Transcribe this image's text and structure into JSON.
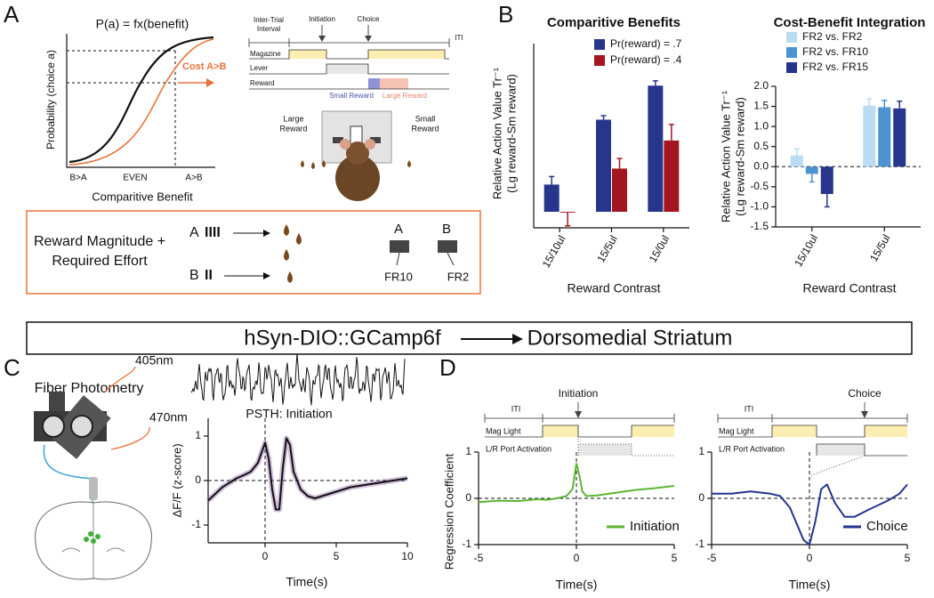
{
  "letters": [
    "A",
    "B",
    "C",
    "D"
  ],
  "panel_a": {
    "formula": "P(a) = fx(benefit)",
    "y_label": "Probability (choice a)",
    "x_label": "Comparitive Benefit",
    "x_categories": [
      "B>A",
      "EVEN",
      "A>B"
    ],
    "annotation": "Cost A>B",
    "timeline": {
      "start": [
        "Inter-Trial",
        "Interval"
      ],
      "events": [
        "Initiation",
        "Choice"
      ],
      "end": "ITI",
      "rows": [
        "Magazine",
        "Lever",
        "Reward"
      ],
      "reward_labels": [
        "Small Reward",
        "Large Reward"
      ]
    },
    "chamber": {
      "left": [
        "Large",
        "Reward"
      ],
      "right": [
        "Small",
        "Reward"
      ]
    },
    "box": {
      "title": [
        "Reward Magnitude +",
        "Required Effort"
      ],
      "options": [
        {
          "name": "A",
          "effort": "IIII"
        },
        {
          "name": "B",
          "effort": "II"
        }
      ],
      "levers": [
        {
          "name": "A",
          "ratio": "FR10"
        },
        {
          "name": "B",
          "ratio": "FR2"
        }
      ]
    }
  },
  "banner": {
    "from": "hSyn-DIO::GCamp6f",
    "to": "Dorsomedial Striatum"
  },
  "panel_c": {
    "title": "Fiber Photometry",
    "wavelengths": [
      "405nm",
      "470nm"
    ]
  },
  "panel_d": {
    "timelines": [
      {
        "start": "ITI",
        "event": "Initiation",
        "rows": [
          "Mag Light",
          "L/R Port Activation"
        ]
      },
      {
        "start": "ITI",
        "event": "Choice",
        "rows": [
          "Mag Light",
          "L/R Port Activation"
        ]
      }
    ]
  },
  "chart_data": [
    {
      "type": "bar",
      "title": "Comparitive Benefits",
      "y_label": [
        "Relative Action Value Tr⁻¹",
        "(Lg reward-Sm reward)"
      ],
      "x_label": "Reward Contrast",
      "categories": [
        "15/10ul",
        "15/5ul",
        "15/0ul"
      ],
      "series": [
        {
          "name": "Pr(reward) = .7",
          "color": "#27358c",
          "values": [
            0.68,
            2.3,
            3.15
          ],
          "errors": [
            0.2,
            0.1,
            0.12
          ]
        },
        {
          "name": "Pr(reward) = .4",
          "color": "#a3161f",
          "values": [
            -0.02,
            1.08,
            1.78
          ],
          "errors": [
            0.33,
            0.25,
            0.4
          ]
        }
      ],
      "ylim": [
        -0.4,
        4.2
      ]
    },
    {
      "type": "bar",
      "title": "Cost-Benefit Integration",
      "y_label": [
        "Relative Action Value Tr⁻¹",
        "(Lg reward-Sm reward)"
      ],
      "x_label": "Reward Contrast",
      "categories": [
        "15/10ul",
        "15/5ul"
      ],
      "series": [
        {
          "name": "FR2 vs. FR2",
          "color": "#b9dcf4",
          "values": [
            0.28,
            1.52
          ],
          "errors": [
            0.16,
            0.17
          ]
        },
        {
          "name": "FR2 vs. FR10",
          "color": "#4b93d1",
          "values": [
            -0.18,
            1.48
          ],
          "errors": [
            0.2,
            0.17
          ]
        },
        {
          "name": "FR2 vs. FR15",
          "color": "#27358c",
          "values": [
            -0.68,
            1.45
          ],
          "errors": [
            0.32,
            0.18
          ]
        }
      ],
      "ylim": [
        -1.5,
        2.0
      ],
      "yticks": [
        {
          "value": -1.5,
          "label": "-1.5"
        },
        {
          "value": -1,
          "label": "-1.0"
        },
        {
          "value": -0.5,
          "label": "-0.5"
        },
        {
          "value": 0,
          "label": "0.0"
        },
        {
          "value": 0.5,
          "label": "0.5"
        },
        {
          "value": 1,
          "label": "1.0"
        },
        {
          "value": 1.5,
          "label": "1.5"
        },
        {
          "value": 2,
          "label": "2.0"
        }
      ],
      "zero_line": true
    },
    {
      "type": "line",
      "title": "PSTH: Initiation",
      "y_label": [
        "ΔF/F (z-score)"
      ],
      "x_label": "Time(s)",
      "x": [
        -4,
        -3.5,
        -3,
        -2.5,
        -2,
        -1.5,
        -1,
        -0.5,
        0,
        0.25,
        0.5,
        0.75,
        1,
        1.25,
        1.5,
        1.75,
        2,
        2.5,
        3,
        3.5,
        4,
        5,
        6,
        7,
        8,
        9,
        10
      ],
      "series": [
        {
          "color": "#111111",
          "values": [
            -0.45,
            -0.3,
            -0.15,
            -0.05,
            0.05,
            0.12,
            0.2,
            0.4,
            0.85,
            0.5,
            -0.2,
            -0.65,
            -0.65,
            0.3,
            0.95,
            0.8,
            0.2,
            -0.2,
            -0.35,
            -0.4,
            -0.35,
            -0.25,
            -0.15,
            -0.1,
            -0.05,
            0.0,
            0.05
          ]
        }
      ],
      "xlim": [
        -4,
        10
      ],
      "xticks": [
        0,
        5,
        10
      ],
      "ylim": [
        -1.4,
        1.4
      ],
      "yticks": [
        -1,
        0,
        1
      ],
      "zero_line": true,
      "event_x": 0
    },
    {
      "type": "line",
      "y_label": [
        "Regression Coefficient"
      ],
      "x_label": "Time(s)",
      "x": [
        -5,
        -4,
        -3,
        -2,
        -1.5,
        -1,
        -0.5,
        -0.2,
        0,
        0.15,
        0.3,
        0.5,
        1,
        2,
        3,
        4,
        5
      ],
      "series": [
        {
          "name": "Initiation",
          "color": "#5cb531",
          "values": [
            -0.08,
            -0.05,
            -0.06,
            -0.02,
            -0.03,
            0.0,
            0.05,
            0.2,
            0.75,
            0.5,
            0.15,
            0.05,
            0.06,
            0.12,
            0.18,
            0.22,
            0.27
          ]
        }
      ],
      "xlim": [
        -5,
        5
      ],
      "xticks": [
        -5,
        0,
        5
      ],
      "ylim": [
        -1,
        1
      ],
      "yticks": [
        -1,
        0,
        1
      ],
      "zero_line": true,
      "event_x": 0
    },
    {
      "type": "line",
      "x_label": "Time(s)",
      "x": [
        -5,
        -4,
        -3,
        -2,
        -1.5,
        -1,
        -0.6,
        -0.3,
        0,
        0.3,
        0.6,
        0.9,
        1.3,
        1.8,
        2.3,
        3,
        4,
        4.6,
        5
      ],
      "series": [
        {
          "name": "Choice",
          "color": "#23358f",
          "values": [
            0.1,
            0.1,
            0.15,
            0.1,
            0.05,
            -0.2,
            -0.6,
            -0.9,
            -1.0,
            -0.5,
            0.2,
            0.3,
            -0.1,
            -0.4,
            -0.4,
            -0.25,
            -0.05,
            0.1,
            0.3
          ]
        }
      ],
      "xlim": [
        -5,
        5
      ],
      "xticks": [
        -5,
        0,
        5
      ],
      "ylim": [
        -1,
        1
      ],
      "yticks": [
        -1,
        0,
        1
      ],
      "zero_line": true,
      "event_x": 0
    }
  ]
}
